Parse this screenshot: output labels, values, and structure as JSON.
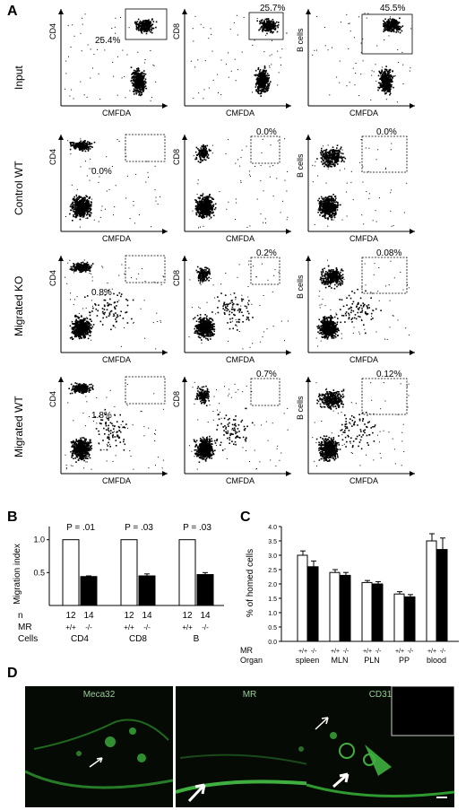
{
  "panels": {
    "A": "A",
    "B": "B",
    "C": "C",
    "D": "D"
  },
  "facs": {
    "x_label": "CMFDA",
    "rows": [
      {
        "label": "Input",
        "plots": [
          {
            "y_label": "CD4",
            "pct": "25.4%"
          },
          {
            "y_label": "CD8",
            "pct": "25.7%"
          },
          {
            "y_label": "B cells",
            "pct": "45.5%"
          }
        ]
      },
      {
        "label": "Control  WT",
        "plots": [
          {
            "y_label": "CD4",
            "pct": "0.0%"
          },
          {
            "y_label": "CD8",
            "pct": "0.0%"
          },
          {
            "y_label": "B cells",
            "pct": "0.0%"
          }
        ]
      },
      {
        "label": "Migrated KO",
        "plots": [
          {
            "y_label": "CD4",
            "pct": "0.8%"
          },
          {
            "y_label": "CD8",
            "pct": "0.2%"
          },
          {
            "y_label": "B cells",
            "pct": "0.08%"
          }
        ]
      },
      {
        "label": "Migrated WT",
        "plots": [
          {
            "y_label": "CD4",
            "pct": "1.8%"
          },
          {
            "y_label": "CD8",
            "pct": "0.7%"
          },
          {
            "y_label": "B cells",
            "pct": "0.12%"
          }
        ]
      }
    ]
  },
  "chart_data": [
    {
      "type": "bar",
      "panel": "B",
      "ylabel": "Migration index",
      "ylim": [
        0,
        1.2
      ],
      "yticks": [
        "0.5",
        "1.0"
      ],
      "row_labels": {
        "n": "n",
        "mr": "MR",
        "cells": "Cells"
      },
      "groups": [
        {
          "p": "P = .01",
          "cells": "CD4",
          "n": [
            "12",
            "14"
          ],
          "mr": [
            "+/+",
            "-/-"
          ],
          "values": [
            1.0,
            0.44
          ],
          "errors": [
            0,
            0.01
          ]
        },
        {
          "p": "P = .03",
          "cells": "CD8",
          "n": [
            "12",
            "14"
          ],
          "mr": [
            "+/+",
            "-/-"
          ],
          "values": [
            1.0,
            0.45
          ],
          "errors": [
            0,
            0.03
          ]
        },
        {
          "p": "P = .03",
          "cells": "B",
          "n": [
            "12",
            "14"
          ],
          "mr": [
            "+/+",
            "-/-"
          ],
          "values": [
            1.0,
            0.47
          ],
          "errors": [
            0,
            0.03
          ]
        }
      ],
      "colors": {
        "wt": "#ffffff",
        "ko": "#000000"
      }
    },
    {
      "type": "bar",
      "panel": "C",
      "ylabel": "% of homed cells",
      "ylim": [
        0,
        4.0
      ],
      "yticks": [
        "0.0",
        "0.5",
        "1.0",
        "1.5",
        "2.0",
        "2.5",
        "3.0",
        "3.5",
        "4.0"
      ],
      "row_labels": {
        "mr": "MR",
        "organ": "Organ"
      },
      "groups": [
        {
          "organ": "spleen",
          "mr": [
            "+/+",
            "-/-"
          ],
          "values": [
            3.0,
            2.6
          ],
          "errors": [
            0.15,
            0.2
          ]
        },
        {
          "organ": "MLN",
          "mr": [
            "+/+",
            "-/-"
          ],
          "values": [
            2.4,
            2.3
          ],
          "errors": [
            0.1,
            0.1
          ]
        },
        {
          "organ": "PLN",
          "mr": [
            "+/+",
            "-/-"
          ],
          "values": [
            2.05,
            2.0
          ],
          "errors": [
            0.07,
            0.08
          ]
        },
        {
          "organ": "PP",
          "mr": [
            "+/+",
            "-/-"
          ],
          "values": [
            1.65,
            1.55
          ],
          "errors": [
            0.08,
            0.08
          ]
        },
        {
          "organ": "blood",
          "mr": [
            "+/+",
            "-/-"
          ],
          "values": [
            3.5,
            3.2
          ],
          "errors": [
            0.25,
            0.4
          ]
        }
      ],
      "colors": {
        "wt": "#ffffff",
        "ko": "#000000"
      }
    }
  ],
  "micrographs": [
    {
      "title": "Meca32"
    },
    {
      "title": "MR"
    },
    {
      "title": "CD31"
    }
  ]
}
